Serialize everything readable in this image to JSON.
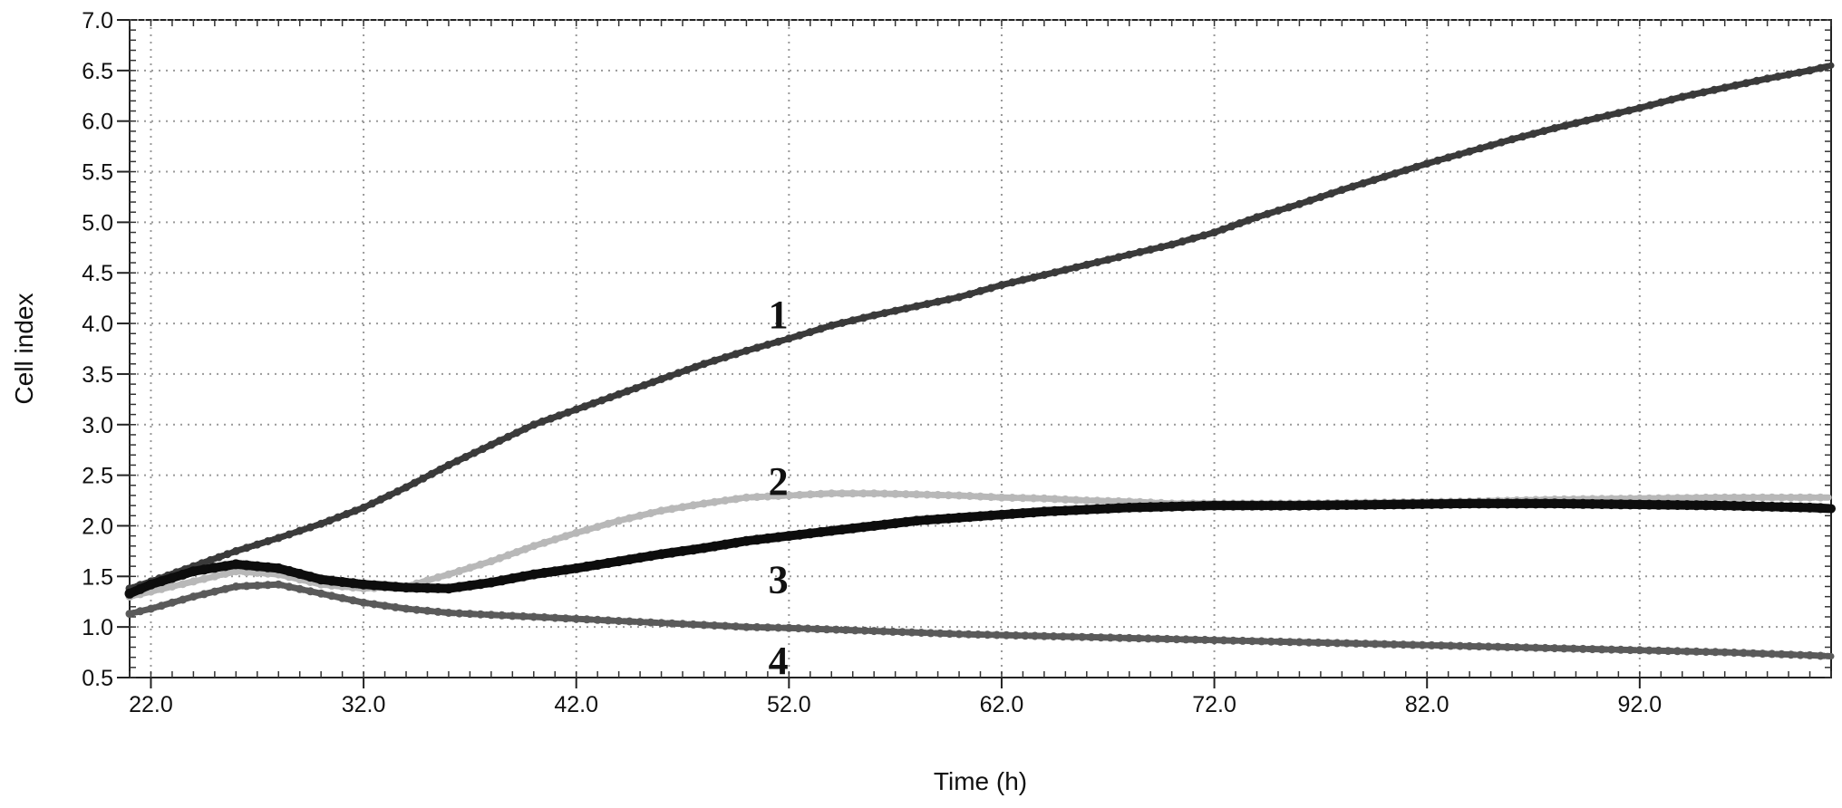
{
  "chart_data": {
    "type": "line",
    "title": "",
    "xlabel": "Time (h)",
    "ylabel": "Cell index",
    "xlim": [
      21.0,
      101.0
    ],
    "ylim": [
      0.5,
      7.0
    ],
    "x_ticks": [
      22.0,
      32.0,
      42.0,
      52.0,
      62.0,
      72.0,
      82.0,
      92.0
    ],
    "x_tick_labels": [
      "22.0",
      "32.0",
      "42.0",
      "52.0",
      "62.0",
      "72.0",
      "82.0",
      "92.0"
    ],
    "y_ticks": [
      0.5,
      1.0,
      1.5,
      2.0,
      2.5,
      3.0,
      3.5,
      4.0,
      4.5,
      5.0,
      5.5,
      6.0,
      6.5,
      7.0
    ],
    "y_tick_labels": [
      "0.5",
      "1.0",
      "1.5",
      "2.0",
      "2.5",
      "3.0",
      "3.5",
      "4.0",
      "4.5",
      "5.0",
      "5.5",
      "6.0",
      "6.5",
      "7.0"
    ],
    "grid": true,
    "legend": "none",
    "series": [
      {
        "tag": "1",
        "color": "#3a3a3a",
        "label_at": [
          51.5,
          4.1
        ],
        "x": [
          21,
          22,
          24,
          26,
          28,
          30,
          32,
          34,
          36,
          38,
          40,
          42,
          44,
          46,
          48,
          50,
          52,
          54,
          56,
          58,
          60,
          62,
          64,
          66,
          68,
          70,
          72,
          74,
          76,
          78,
          80,
          82,
          84,
          86,
          88,
          90,
          92,
          94,
          96,
          98,
          100,
          101
        ],
        "y": [
          1.38,
          1.45,
          1.6,
          1.75,
          1.88,
          2.02,
          2.18,
          2.38,
          2.6,
          2.8,
          3.0,
          3.15,
          3.3,
          3.45,
          3.6,
          3.73,
          3.85,
          3.98,
          4.08,
          4.17,
          4.26,
          4.38,
          4.48,
          4.58,
          4.68,
          4.78,
          4.9,
          5.05,
          5.18,
          5.32,
          5.45,
          5.58,
          5.7,
          5.82,
          5.93,
          6.03,
          6.13,
          6.24,
          6.33,
          6.42,
          6.5,
          6.55
        ]
      },
      {
        "tag": "2",
        "color": "#b8b8b8",
        "label_at": [
          51.5,
          2.45
        ],
        "x": [
          21,
          22,
          24,
          26,
          28,
          30,
          32,
          34,
          36,
          38,
          40,
          42,
          44,
          46,
          48,
          50,
          52,
          54,
          56,
          58,
          60,
          62,
          64,
          66,
          68,
          70,
          72,
          76,
          80,
          84,
          88,
          92,
          96,
          100,
          101
        ],
        "y": [
          1.3,
          1.35,
          1.45,
          1.55,
          1.52,
          1.42,
          1.38,
          1.4,
          1.52,
          1.65,
          1.8,
          1.93,
          2.05,
          2.15,
          2.22,
          2.28,
          2.3,
          2.32,
          2.32,
          2.31,
          2.3,
          2.28,
          2.27,
          2.25,
          2.24,
          2.22,
          2.22,
          2.22,
          2.23,
          2.24,
          2.26,
          2.27,
          2.28,
          2.28,
          2.28
        ]
      },
      {
        "tag": "3",
        "color": "#0d0d0d",
        "label_at": [
          51.5,
          1.48
        ],
        "x": [
          21,
          22,
          24,
          26,
          28,
          30,
          32,
          34,
          36,
          38,
          40,
          42,
          44,
          46,
          48,
          50,
          52,
          54,
          56,
          58,
          60,
          62,
          64,
          66,
          68,
          70,
          72,
          76,
          80,
          84,
          88,
          92,
          96,
          100,
          101
        ],
        "y": [
          1.33,
          1.42,
          1.55,
          1.62,
          1.58,
          1.47,
          1.42,
          1.39,
          1.38,
          1.44,
          1.52,
          1.58,
          1.65,
          1.72,
          1.78,
          1.85,
          1.9,
          1.95,
          2.0,
          2.05,
          2.08,
          2.11,
          2.14,
          2.16,
          2.18,
          2.19,
          2.2,
          2.2,
          2.21,
          2.22,
          2.22,
          2.21,
          2.2,
          2.18,
          2.17
        ]
      },
      {
        "tag": "4",
        "color": "#5a5a5a",
        "label_at": [
          51.5,
          0.68
        ],
        "x": [
          21,
          22,
          24,
          26,
          28,
          30,
          32,
          34,
          36,
          38,
          40,
          42,
          44,
          46,
          48,
          50,
          52,
          56,
          60,
          64,
          68,
          72,
          76,
          80,
          84,
          88,
          92,
          96,
          100,
          101
        ],
        "y": [
          1.13,
          1.18,
          1.3,
          1.4,
          1.42,
          1.33,
          1.24,
          1.18,
          1.14,
          1.12,
          1.1,
          1.08,
          1.06,
          1.04,
          1.02,
          1.0,
          0.99,
          0.96,
          0.93,
          0.91,
          0.89,
          0.87,
          0.85,
          0.83,
          0.81,
          0.79,
          0.77,
          0.75,
          0.72,
          0.71
        ]
      }
    ]
  }
}
